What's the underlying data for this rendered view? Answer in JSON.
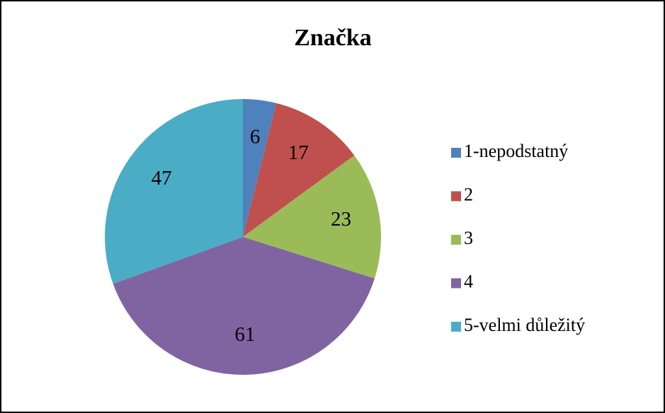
{
  "chart_data": {
    "type": "pie",
    "title": "Značka",
    "categories": [
      "1-nepodstatný",
      "2",
      "3",
      "4",
      "5-velmi důležitý"
    ],
    "values": [
      6,
      17,
      23,
      61,
      47
    ],
    "colors": [
      "#4f81bd",
      "#c0504d",
      "#9bbb59",
      "#8064a2",
      "#4bacc6"
    ],
    "legend": "right"
  }
}
